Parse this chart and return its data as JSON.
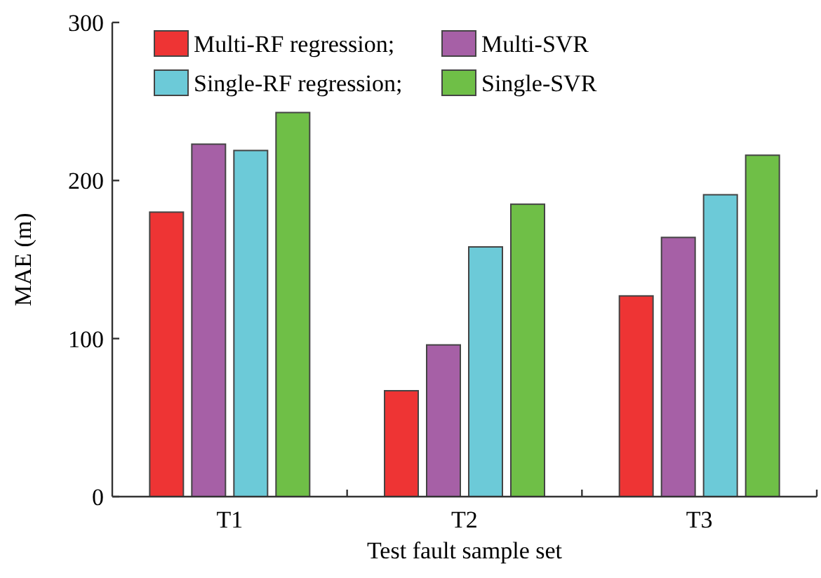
{
  "chart_data": {
    "type": "bar",
    "xlabel": "Test fault sample set",
    "ylabel": "MAE (m)",
    "categories": [
      "T1",
      "T2",
      "T3"
    ],
    "series": [
      {
        "name": "Multi-RF regression;",
        "color": "#ee3434",
        "values": [
          180,
          67,
          127
        ]
      },
      {
        "name": "Multi-SVR",
        "color": "#a660a6",
        "values": [
          223,
          96,
          164
        ]
      },
      {
        "name": "Single-RF regression;",
        "color": "#6ccad8",
        "values": [
          219,
          158,
          191
        ]
      },
      {
        "name": "Single-SVR",
        "color": "#6fbf47",
        "values": [
          243,
          185,
          216
        ]
      }
    ],
    "ylim": [
      0,
      300
    ],
    "yticks": [
      0,
      100,
      200,
      300
    ],
    "grid": false,
    "legend": "top"
  }
}
